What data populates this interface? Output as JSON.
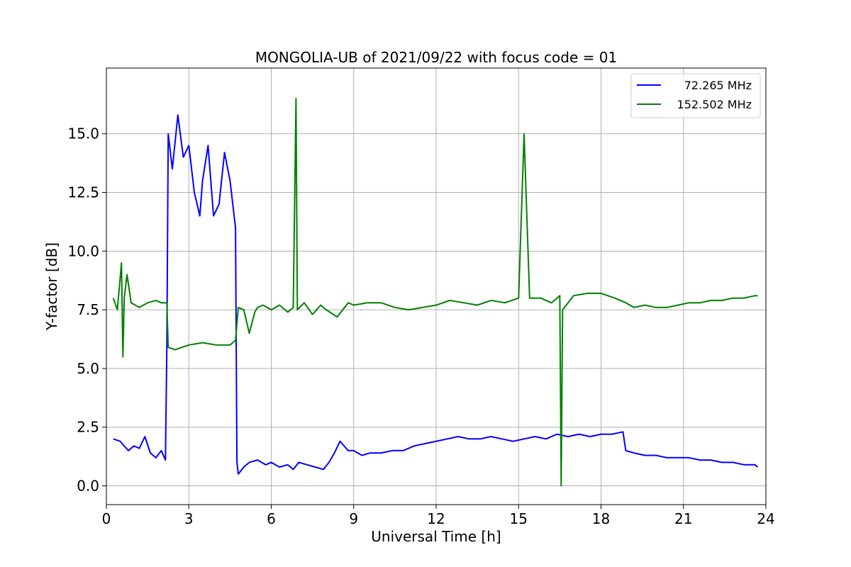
{
  "chart_data": {
    "type": "line",
    "title": "MONGOLIA-UB of 2021/09/22 with focus code = 01",
    "xlabel": "Universal Time [h]",
    "ylabel": "Y-factor [dB]",
    "xlim": [
      0,
      24
    ],
    "ylim": [
      -0.8,
      17.8
    ],
    "xticks": [
      0,
      3,
      6,
      9,
      12,
      15,
      18,
      21,
      24
    ],
    "xtick_labels": [
      "0",
      "3",
      "6",
      "9",
      "12",
      "15",
      "18",
      "21",
      "24"
    ],
    "yticks": [
      0,
      2.5,
      5,
      7.5,
      10,
      12.5,
      15
    ],
    "ytick_labels": [
      "0.0",
      "2.5",
      "5.0",
      "7.5",
      "10.0",
      "12.5",
      "15.0"
    ],
    "grid": true,
    "legend_position": "top-right",
    "series": [
      {
        "name": "72.265 MHz",
        "color": "#0000ff",
        "x": [
          0.25,
          0.5,
          0.8,
          1.0,
          1.2,
          1.4,
          1.6,
          1.8,
          2.0,
          2.15,
          2.2,
          2.25,
          2.4,
          2.6,
          2.8,
          3.0,
          3.2,
          3.4,
          3.5,
          3.7,
          3.9,
          4.1,
          4.3,
          4.5,
          4.7,
          4.75,
          4.8,
          5.0,
          5.2,
          5.5,
          5.8,
          6.0,
          6.3,
          6.6,
          6.8,
          7.0,
          7.3,
          7.6,
          7.9,
          8.1,
          8.3,
          8.5,
          8.8,
          9.0,
          9.3,
          9.6,
          10.0,
          10.4,
          10.8,
          11.2,
          11.6,
          12.0,
          12.4,
          12.8,
          13.2,
          13.6,
          14.0,
          14.4,
          14.8,
          15.2,
          15.6,
          16.0,
          16.4,
          16.8,
          17.2,
          17.6,
          18.0,
          18.4,
          18.8,
          18.9,
          19.2,
          19.6,
          20.0,
          20.4,
          20.8,
          21.2,
          21.6,
          22.0,
          22.4,
          22.8,
          23.2,
          23.6,
          23.7
        ],
        "values": [
          2.0,
          1.9,
          1.5,
          1.7,
          1.6,
          2.1,
          1.4,
          1.2,
          1.5,
          1.1,
          6.0,
          15.0,
          13.5,
          15.8,
          14.0,
          14.5,
          12.5,
          11.5,
          13.0,
          14.5,
          11.5,
          12.0,
          14.2,
          13.0,
          11.0,
          1.0,
          0.5,
          0.8,
          1.0,
          1.1,
          0.9,
          1.0,
          0.8,
          0.9,
          0.7,
          1.0,
          0.9,
          0.8,
          0.7,
          1.0,
          1.4,
          1.9,
          1.5,
          1.5,
          1.3,
          1.4,
          1.4,
          1.5,
          1.5,
          1.7,
          1.8,
          1.9,
          2.0,
          2.1,
          2.0,
          2.0,
          2.1,
          2.0,
          1.9,
          2.0,
          2.1,
          2.0,
          2.2,
          2.1,
          2.2,
          2.1,
          2.2,
          2.2,
          2.3,
          1.5,
          1.4,
          1.3,
          1.3,
          1.2,
          1.2,
          1.2,
          1.1,
          1.1,
          1.0,
          1.0,
          0.9,
          0.9,
          0.8
        ]
      },
      {
        "name": "152.502 MHz",
        "color": "#008000",
        "x": [
          0.25,
          0.4,
          0.55,
          0.6,
          0.65,
          0.75,
          0.9,
          1.2,
          1.5,
          1.8,
          2.0,
          2.2,
          2.25,
          2.5,
          3.0,
          3.5,
          4.0,
          4.5,
          4.7,
          4.8,
          5.0,
          5.2,
          5.4,
          5.5,
          5.7,
          6.0,
          6.3,
          6.6,
          6.8,
          6.9,
          6.95,
          7.2,
          7.5,
          7.8,
          8.0,
          8.4,
          8.8,
          9.0,
          9.5,
          10.0,
          10.5,
          11.0,
          11.5,
          12.0,
          12.5,
          13.0,
          13.5,
          14.0,
          14.5,
          15.0,
          15.2,
          15.4,
          15.8,
          16.2,
          16.5,
          16.55,
          16.6,
          17.0,
          17.5,
          18.0,
          18.5,
          18.9,
          19.2,
          19.6,
          20.0,
          20.4,
          20.8,
          21.2,
          21.6,
          22.0,
          22.4,
          22.8,
          23.2,
          23.6,
          23.7
        ],
        "values": [
          8.0,
          7.5,
          9.5,
          5.5,
          8.0,
          9.0,
          7.8,
          7.6,
          7.8,
          7.9,
          7.8,
          7.8,
          5.9,
          5.8,
          6.0,
          6.1,
          6.0,
          6.0,
          6.2,
          7.6,
          7.5,
          6.5,
          7.4,
          7.6,
          7.7,
          7.5,
          7.7,
          7.4,
          7.6,
          16.5,
          7.5,
          7.8,
          7.3,
          7.7,
          7.5,
          7.2,
          7.8,
          7.7,
          7.8,
          7.8,
          7.6,
          7.5,
          7.6,
          7.7,
          7.9,
          7.8,
          7.7,
          7.9,
          7.8,
          8.0,
          15.0,
          8.0,
          8.0,
          7.8,
          8.1,
          0.0,
          7.5,
          8.1,
          8.2,
          8.2,
          8.0,
          7.8,
          7.6,
          7.7,
          7.6,
          7.6,
          7.7,
          7.8,
          7.8,
          7.9,
          7.9,
          8.0,
          8.0,
          8.1,
          8.1
        ]
      }
    ],
    "annotations": []
  }
}
